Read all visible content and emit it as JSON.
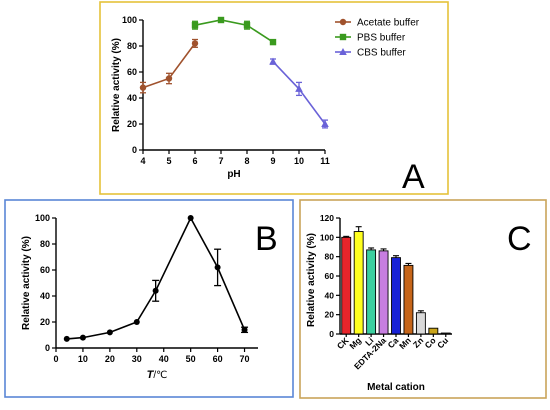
{
  "chart_data": [
    {
      "type": "line",
      "panel_label": "A",
      "xlabel": "pH",
      "ylabel": "Relative activity (%)",
      "xlim": [
        4,
        11
      ],
      "ylim": [
        0,
        100
      ],
      "xticks": [
        "4",
        "5",
        "6",
        "7",
        "8",
        "9",
        "10",
        "11"
      ],
      "yticks": [
        "0",
        "20",
        "40",
        "60",
        "80",
        "100"
      ],
      "legend_position": "top-right",
      "series": [
        {
          "name": "Acetate buffer",
          "color": "#a0522d",
          "marker": "circle",
          "x": [
            4,
            5,
            6
          ],
          "y": [
            48,
            55,
            82
          ],
          "err": [
            4,
            4,
            3
          ]
        },
        {
          "name": "PBS buffer",
          "color": "#3a9a1e",
          "marker": "square",
          "x": [
            6,
            7,
            8,
            9
          ],
          "y": [
            96,
            100,
            96,
            83
          ],
          "err": [
            3,
            0,
            3,
            1
          ]
        },
        {
          "name": "CBS buffer",
          "color": "#6a62d8",
          "marker": "triangle",
          "x": [
            9,
            10,
            11
          ],
          "y": [
            68,
            47,
            20
          ],
          "err": [
            2,
            5,
            3
          ]
        }
      ]
    },
    {
      "type": "line",
      "panel_label": "B",
      "xlabel_main": "T",
      "xlabel_unit": "/℃",
      "ylabel": "Relative activity (%)",
      "xlim": [
        0,
        75
      ],
      "ylim": [
        0,
        100
      ],
      "xticks": [
        "0",
        "10",
        "20",
        "30",
        "40",
        "50",
        "60",
        "70"
      ],
      "yticks": [
        "0",
        "20",
        "40",
        "60",
        "80",
        "100"
      ],
      "series": [
        {
          "color": "#000000",
          "x": [
            4,
            10,
            20,
            30,
            37,
            50,
            60,
            70
          ],
          "y": [
            7,
            8,
            12,
            20,
            44,
            100,
            62,
            14
          ],
          "err": [
            0,
            0,
            0,
            0,
            8,
            0,
            14,
            2
          ]
        }
      ]
    },
    {
      "type": "bar",
      "panel_label": "C",
      "xlabel": "Metal cation",
      "ylabel": "Relative activity (%)",
      "ylim": [
        0,
        120
      ],
      "yticks": [
        "0",
        "20",
        "40",
        "60",
        "80",
        "100",
        "120"
      ],
      "categories": [
        "CK",
        "Mg",
        "Li",
        "EDTA-2Na",
        "Ca",
        "Mn",
        "Zn",
        "Co",
        "Cu"
      ],
      "values": [
        100,
        106,
        87,
        86,
        79,
        71,
        22,
        6,
        1
      ],
      "err": [
        1,
        5,
        2,
        2,
        2,
        2,
        2,
        0,
        0
      ],
      "colors": [
        "#e8252b",
        "#ffff1f",
        "#3ccf9f",
        "#c77ee0",
        "#1822d6",
        "#c6661a",
        "#d9d9d9",
        "#c9a41a",
        "#8a8a8a"
      ]
    }
  ]
}
